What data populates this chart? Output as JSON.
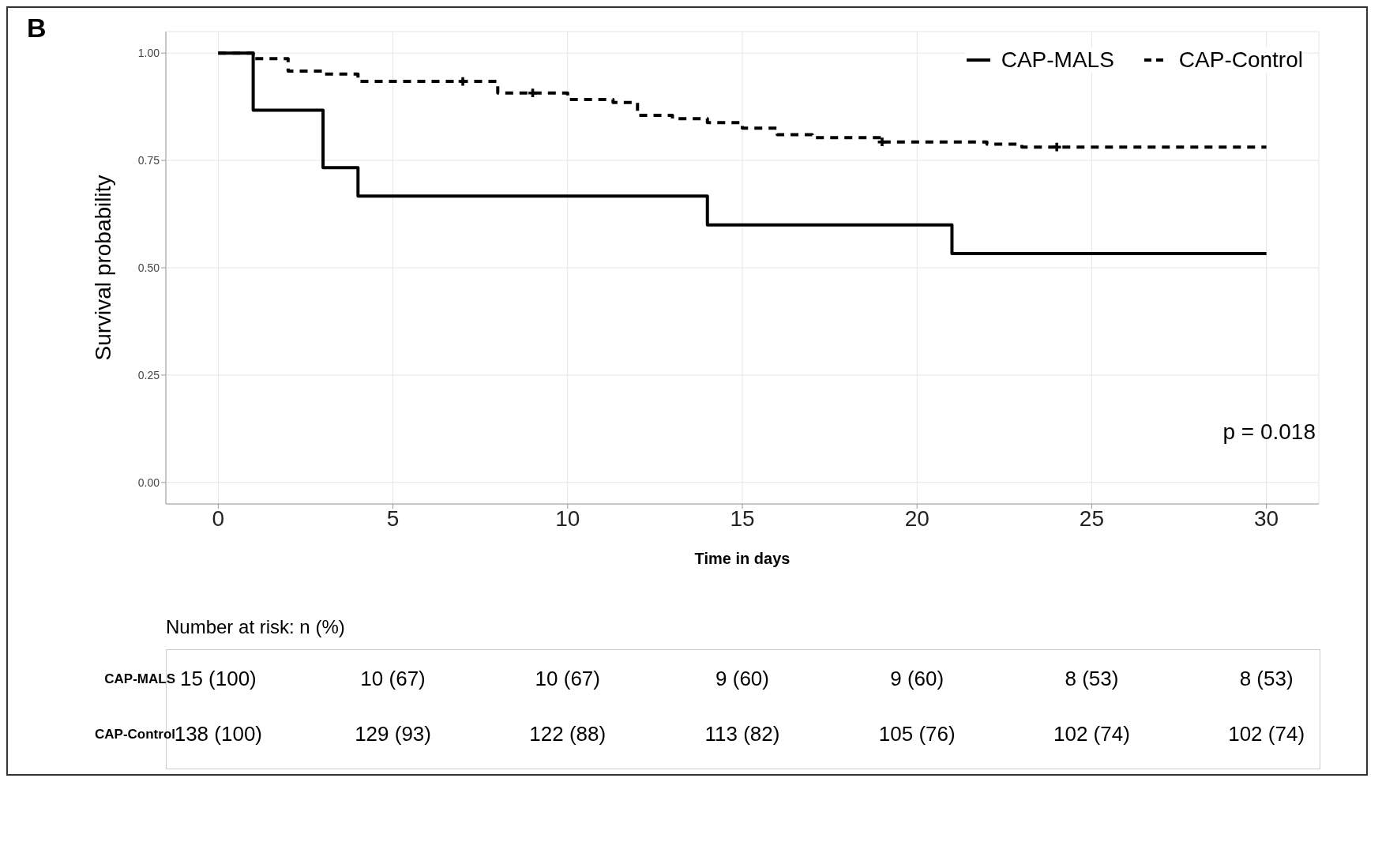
{
  "chart_data": {
    "type": "step",
    "title": "B",
    "xlabel": "Time in days",
    "ylabel": "Survival probability",
    "xlim": [
      -1.5,
      31.5
    ],
    "xticks": [
      0,
      5,
      10,
      15,
      20,
      25,
      30
    ],
    "ylim": [
      -0.05,
      1.05
    ],
    "yticks": [
      {
        "value": 0,
        "label": "0.00"
      },
      {
        "value": 0.25,
        "label": "0.25"
      },
      {
        "value": 0.5,
        "label": "0.50"
      },
      {
        "value": 0.75,
        "label": "0.75"
      },
      {
        "value": 1,
        "label": "1.00"
      }
    ],
    "grid": true,
    "legend": "top right",
    "series": [
      {
        "name": "CAP-MALS",
        "color": "#000000",
        "line_style": "solid",
        "x": [
          0,
          1,
          3,
          4,
          14,
          21,
          30
        ],
        "values": [
          1,
          0.867,
          0.733,
          0.667,
          0.6,
          0.533,
          0.533
        ]
      },
      {
        "name": "CAP-Control",
        "color": "#000000",
        "line_style": "dashed",
        "x": [
          0,
          1,
          2,
          3,
          4,
          8,
          10,
          11.3,
          12,
          13,
          14,
          15,
          16,
          17,
          19,
          22,
          23,
          30
        ],
        "values": [
          1,
          0.987,
          0.958,
          0.951,
          0.934,
          0.907,
          0.892,
          0.885,
          0.855,
          0.847,
          0.838,
          0.825,
          0.81,
          0.803,
          0.793,
          0.788,
          0.781,
          0.781
        ]
      },
      {
        "type": "scatter",
        "color": "#000000",
        "marker": "cross",
        "x": [
          7,
          9,
          19,
          24
        ],
        "values": [
          0.934,
          0.907,
          0.793,
          0.781
        ]
      }
    ],
    "annotations": [
      "p = 0.018",
      "Number at risk: n (%)",
      "CAP-MALS",
      "15 (100)",
      "10 (67)",
      "10 (67)",
      "9 (60)",
      "9 (60)",
      "8 (53)",
      "8 (53)",
      "CAP-Control",
      "138 (100)",
      "129 (93)",
      "122 (88)",
      "113 (82)",
      "105 (76)",
      "102 (74)",
      "102 (74)"
    ]
  }
}
